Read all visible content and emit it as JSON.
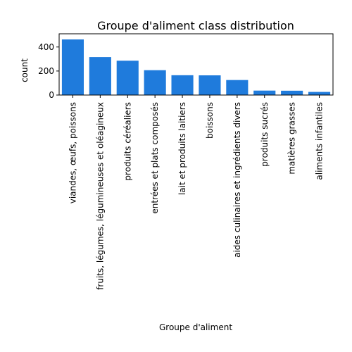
{
  "chart_data": {
    "type": "bar",
    "title": "Groupe d'aliment class distribution",
    "xlabel": "Groupe d'aliment",
    "ylabel": "count",
    "categories": [
      "viandes, œufs, poissons",
      "fruits, légumes, légumineuses et oléagineux",
      "produits céréaliers",
      "entrées et plats composés",
      "lait et produits laitiers",
      "boissons",
      "aides culinaires et ingrédients divers",
      "produits sucrés",
      "matières grasses",
      "aliments infantiles"
    ],
    "values": [
      463,
      316,
      286,
      207,
      165,
      164,
      125,
      37,
      36,
      26
    ],
    "ylim": [
      0,
      510
    ],
    "yticks": [
      0,
      200,
      400
    ],
    "grid": false,
    "bar_color": "#1f7bdc"
  }
}
